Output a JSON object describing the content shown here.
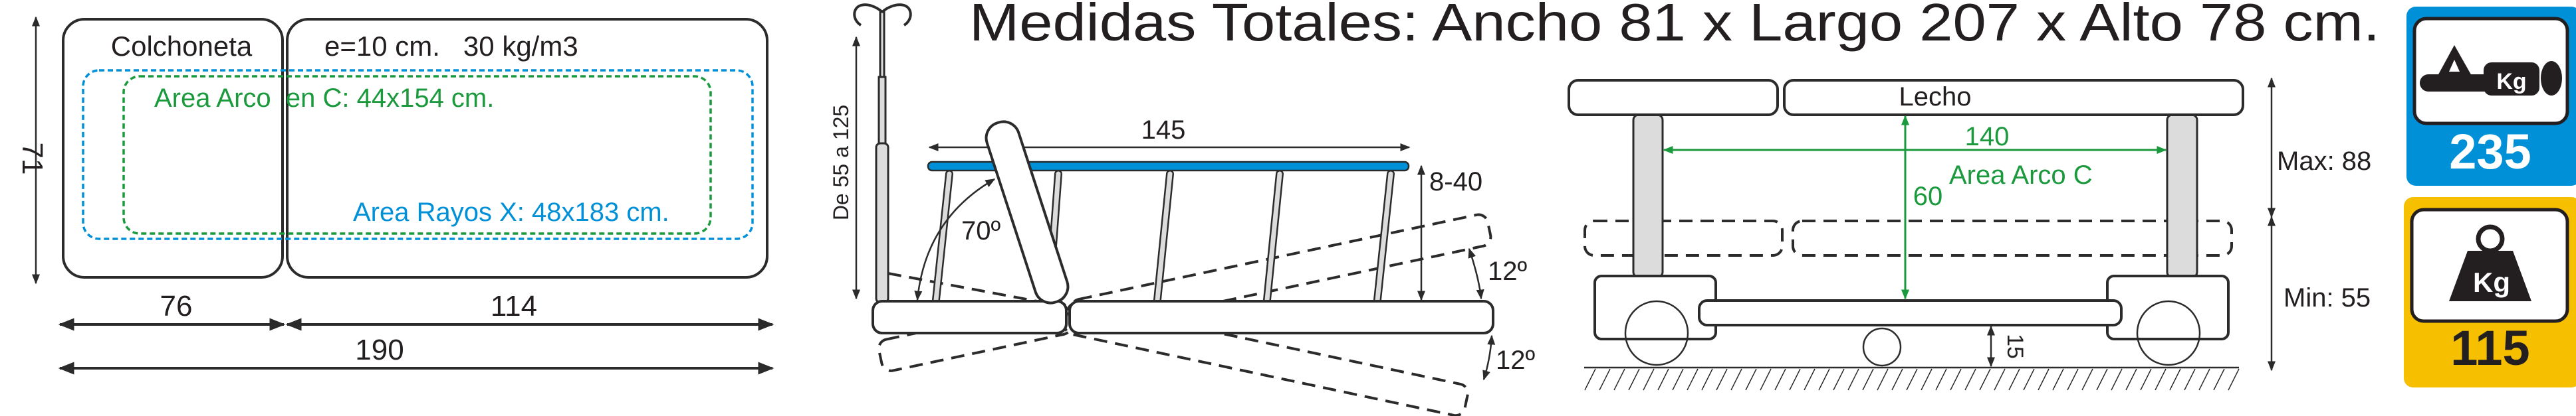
{
  "colors": {
    "blue": "#0090d8",
    "yellow": "#f6bf00",
    "green": "#1a9a3c",
    "line": "#2b2b2b",
    "gray": "#dcdcdc"
  },
  "title": "Medidas Totales: Ancho 81 x Largo 207 x Alto 78 cm.",
  "mattress": {
    "label": "Colchoneta",
    "spec": "e=10 cm.   30 kg/m3",
    "arc_area": "Area Arco  en C: 44x154 cm.",
    "xray_area": "Area Rayos X: 48x183 cm.",
    "width": "71",
    "seg1": "76",
    "seg2": "114",
    "total": "190"
  },
  "side_view": {
    "pole_range": "De 55 a 125",
    "top_length": "145",
    "backrest_angle": "70º",
    "height_range": "8-40",
    "tilt_up": "12º",
    "tilt_down": "12º"
  },
  "front_view": {
    "bed_label": "Lecho",
    "arc_width": "140",
    "arc_height": "60",
    "arc_label": "Area Arco C",
    "ground_clearance": "15",
    "max_height": "Max: 88",
    "min_height": "Min: 55"
  },
  "badges": [
    {
      "icon": "patient-weight-icon",
      "icon_text": "Kg",
      "value": "235",
      "color": "#0090d8"
    },
    {
      "icon": "weight-icon",
      "icon_text": "Kg",
      "value": "115",
      "color": "#f6bf00"
    }
  ]
}
